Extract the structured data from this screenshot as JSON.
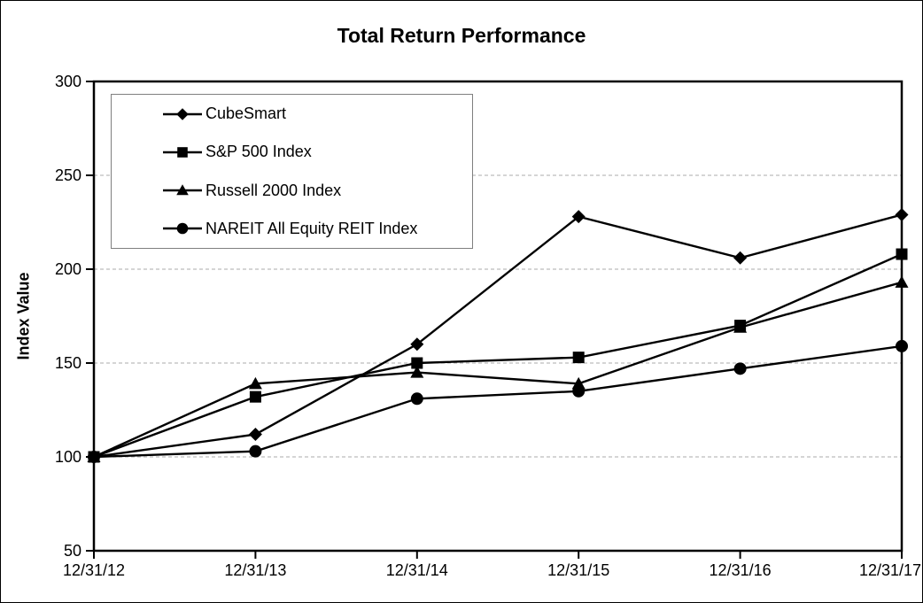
{
  "window": {
    "background_color": "#ffffff",
    "frame_border_color": "#000000"
  },
  "chart_data": {
    "type": "line",
    "title": "Total Return Performance",
    "xlabel": "",
    "ylabel": "Index Value",
    "ylim": [
      50,
      300
    ],
    "ytick_interval": 50,
    "ytick_labels": [
      "50",
      "100",
      "150",
      "200",
      "250",
      "300"
    ],
    "categories": [
      "12/31/12",
      "12/31/13",
      "12/31/14",
      "12/31/15",
      "12/31/16",
      "12/31/17"
    ],
    "series": [
      {
        "name": "CubeSmart",
        "marker": "diamond",
        "color": "#000000",
        "values": [
          100,
          112,
          160,
          228,
          206,
          229
        ]
      },
      {
        "name": "S&P 500 Index",
        "marker": "square",
        "color": "#000000",
        "values": [
          100,
          132,
          150,
          153,
          170,
          208
        ]
      },
      {
        "name": "Russell 2000 Index",
        "marker": "triangle",
        "color": "#000000",
        "values": [
          100,
          139,
          145,
          139,
          169,
          193
        ]
      },
      {
        "name": "NAREIT All Equity REIT Index",
        "marker": "circle",
        "color": "#000000",
        "values": [
          100,
          103,
          131,
          135,
          147,
          159
        ]
      }
    ],
    "grid": {
      "horizontal": true,
      "style": "dashed",
      "color": "#ababab"
    },
    "legend": {
      "position": "top-left-inside",
      "border_color": "#7f7f7f"
    },
    "axis_color": "#000000"
  }
}
